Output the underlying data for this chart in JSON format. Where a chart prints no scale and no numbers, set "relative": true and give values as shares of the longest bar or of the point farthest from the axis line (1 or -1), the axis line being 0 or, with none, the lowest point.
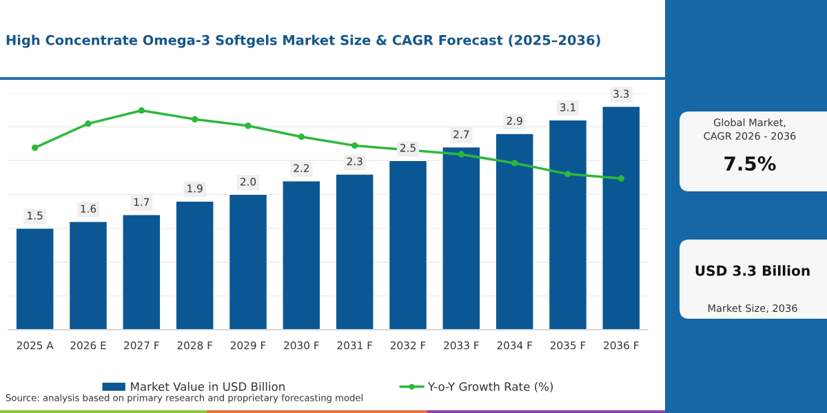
{
  "chart_data": [
    {
      "type": "bar",
      "title": "High Concentrate Omega-3 Softgels Market Size & CAGR Forecast (2025–2036)",
      "categories": [
        "2025 A",
        "2026 E",
        "2027 F",
        "2028 F",
        "2029 F",
        "2030 F",
        "2031 F",
        "2032 F",
        "2033 F",
        "2034 F",
        "2035 F",
        "2036 F"
      ],
      "series": [
        {
          "name": "Market Value in USD Billion",
          "type": "bar",
          "color": "#0b5794",
          "values": [
            1.5,
            1.6,
            1.7,
            1.9,
            2.0,
            2.2,
            2.3,
            2.5,
            2.7,
            2.9,
            3.1,
            3.3
          ],
          "value_labels": [
            "1.5",
            "1.6",
            "1.7",
            "1.9",
            "2.0",
            "2.2",
            "2.3",
            "2.5",
            "2.7",
            "2.9",
            "3.1",
            "3.3"
          ]
        }
      ],
      "ylim": [
        0,
        3.5
      ],
      "yticks": [
        0,
        0.5,
        1,
        1.5,
        2,
        2.5,
        3,
        3.5
      ],
      "tick_labels": "x",
      "grid": "y",
      "legend": "bottom",
      "annotations": [
        "Source: analysis based on primary research and proprietary forecasting model"
      ]
    },
    {
      "type": "line",
      "categories": [
        null,
        null,
        null,
        null,
        null,
        null,
        null,
        null,
        null,
        null,
        null,
        null
      ],
      "series": [
        {
          "name": "Y-o-Y Growth Rate (%)",
          "color": "#2db83d",
          "values": [
            0.83,
            0.94,
            1,
            0.96,
            0.93,
            0.88,
            0.84,
            null,
            0.8,
            0.76,
            0.71,
            0.69
          ]
        }
      ],
      "relative": true,
      "marker": "circle",
      "line_style": "solid",
      "legend": "bottom"
    },
    {
      "type": "other",
      "annotations": [
        "Global Market,\nCAGR 2026 - 2036",
        "7.5%",
        "USD 3.3 Billion",
        "Market Size, 2036"
      ]
    }
  ]
}
